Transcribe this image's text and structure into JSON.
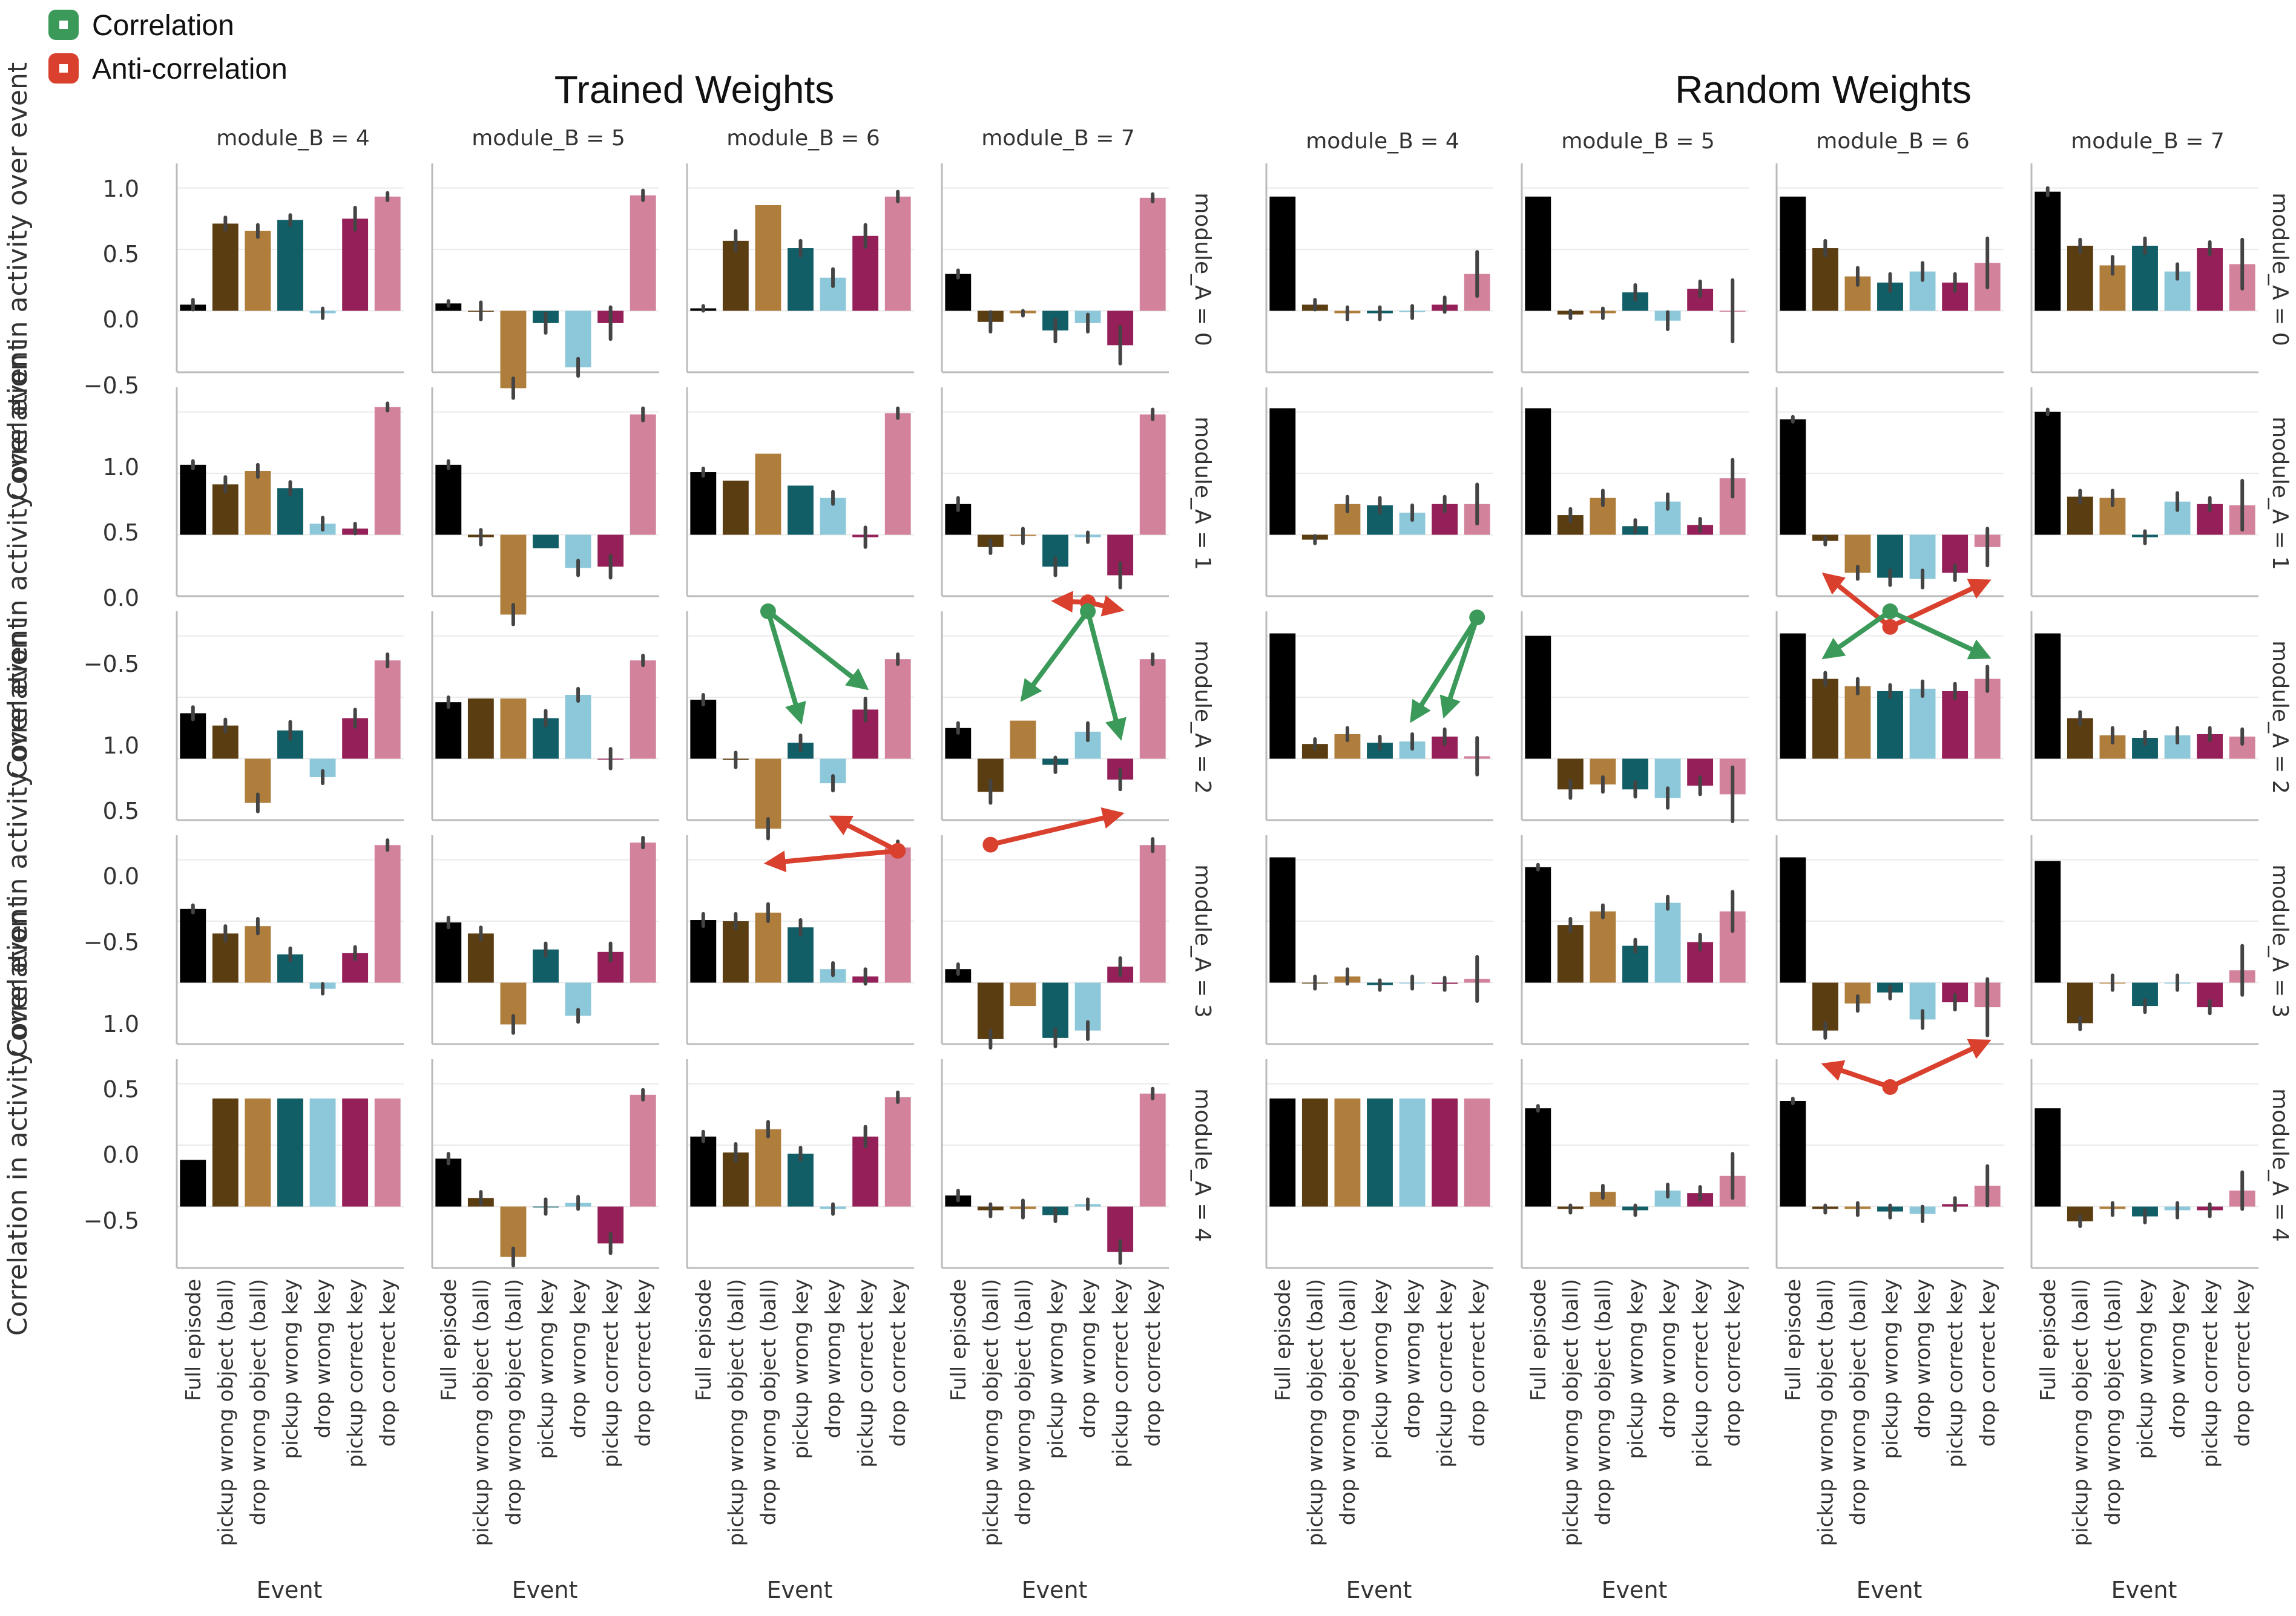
{
  "legend": {
    "correlation_label": "Correlation",
    "anticorrelation_label": "Anti-correlation",
    "correlation_color": "#3b9a5a",
    "anticorrelation_color": "#d9402e"
  },
  "colors": {
    "events": [
      "#000000",
      "#5b3d12",
      "#b07e3c",
      "#115e67",
      "#8cc8da",
      "#951f58",
      "#d3829b"
    ],
    "error_bar": "#444444",
    "grid": "#eaeaea",
    "axis": "#bbbbbb"
  },
  "chart_data": [
    {
      "type": "bar",
      "title": "Trained Weights",
      "ylabel": "Correlation in activity over event",
      "xlabel": "Event",
      "ylim": [
        -0.5,
        1.2
      ],
      "yticks": [
        -0.5,
        0.0,
        0.5,
        1.0
      ],
      "ytick_labels": [
        "−0.5",
        "0.0",
        "0.5",
        "1.0"
      ],
      "col_labels": [
        "module_B = 4",
        "module_B = 5",
        "module_B = 6",
        "module_B = 7"
      ],
      "row_labels": [
        "module_A = 0",
        "module_A = 1",
        "module_A = 2",
        "module_A = 3",
        "module_A = 4"
      ],
      "categories": [
        "Full episode",
        "pickup wrong object (ball)",
        "drop wrong object (ball)",
        "pickup wrong key",
        "drop wrong key",
        "pickup correct key",
        "drop correct key"
      ],
      "values": [
        [
          [
            0.05,
            0.71,
            0.65,
            0.74,
            -0.02,
            0.75,
            0.93
          ],
          [
            0.06,
            0.0,
            -0.63,
            -0.1,
            -0.46,
            -0.1,
            0.94
          ],
          [
            0.02,
            0.57,
            0.86,
            0.51,
            0.27,
            0.61,
            0.93
          ],
          [
            0.3,
            -0.09,
            -0.02,
            -0.16,
            -0.1,
            -0.28,
            0.92
          ]
        ],
        [
          [
            0.57,
            0.41,
            0.52,
            0.38,
            0.09,
            0.05,
            1.04
          ],
          [
            0.57,
            -0.02,
            -0.65,
            -0.11,
            -0.27,
            -0.26,
            0.98
          ],
          [
            0.51,
            0.44,
            0.66,
            0.4,
            0.3,
            -0.02,
            0.99
          ],
          [
            0.25,
            -0.1,
            -0.01,
            -0.26,
            -0.02,
            -0.33,
            0.98
          ]
        ],
        [
          [
            0.37,
            0.27,
            -0.36,
            0.23,
            -0.15,
            0.33,
            0.8
          ],
          [
            0.46,
            0.49,
            0.49,
            0.33,
            0.52,
            0.0,
            0.8
          ],
          [
            0.48,
            -0.01,
            -0.57,
            0.13,
            -0.2,
            0.4,
            0.81
          ],
          [
            0.25,
            -0.27,
            0.31,
            -0.05,
            0.22,
            -0.17,
            0.81
          ]
        ],
        [
          [
            0.6,
            0.4,
            0.46,
            0.23,
            -0.05,
            0.24,
            1.12
          ],
          [
            0.49,
            0.4,
            -0.34,
            0.27,
            -0.27,
            0.25,
            1.14
          ],
          [
            0.51,
            0.5,
            0.57,
            0.45,
            0.11,
            0.05,
            1.1
          ],
          [
            0.11,
            -0.46,
            -0.19,
            -0.45,
            -0.39,
            0.13,
            1.12
          ]
        ],
        [
          [
            0.38,
            0.88,
            0.88,
            0.88,
            0.88,
            0.88,
            0.88
          ],
          [
            0.39,
            0.07,
            -0.41,
            0.0,
            0.03,
            -0.3,
            0.91
          ],
          [
            0.57,
            0.44,
            0.63,
            0.43,
            -0.02,
            0.57,
            0.89
          ],
          [
            0.09,
            -0.03,
            -0.02,
            -0.07,
            0.02,
            -0.37,
            0.92
          ]
        ]
      ],
      "errors": [
        [
          [
            0.04,
            0.05,
            0.05,
            0.04,
            0.04,
            0.09,
            0.03
          ],
          [
            0.02,
            0.07,
            0.08,
            0.08,
            0.07,
            0.13,
            0.04
          ],
          [
            0.02,
            0.08,
            0.0,
            0.06,
            0.07,
            0.09,
            0.04
          ],
          [
            0.03,
            0.08,
            0.02,
            0.09,
            0.07,
            0.15,
            0.03
          ]
        ],
        [
          [
            0.03,
            0.06,
            0.05,
            0.05,
            0.05,
            0.04,
            0.03
          ],
          [
            0.03,
            0.06,
            0.08,
            0.0,
            0.06,
            0.09,
            0.05
          ],
          [
            0.03,
            0.0,
            0.0,
            0.0,
            0.05,
            0.08,
            0.04
          ],
          [
            0.05,
            0.05,
            0.06,
            0.07,
            0.04,
            0.1,
            0.04
          ]
        ],
        [
          [
            0.05,
            0.05,
            0.07,
            0.07,
            0.05,
            0.07,
            0.05
          ],
          [
            0.04,
            0.0,
            0.0,
            0.06,
            0.05,
            0.08,
            0.04
          ],
          [
            0.04,
            0.06,
            0.08,
            0.06,
            0.06,
            0.09,
            0.04
          ],
          [
            0.04,
            0.09,
            0.0,
            0.06,
            0.07,
            0.08,
            0.04
          ]
        ],
        [
          [
            0.03,
            0.06,
            0.06,
            0.05,
            0.04,
            0.05,
            0.04
          ],
          [
            0.04,
            0.05,
            0.07,
            0.05,
            0.05,
            0.07,
            0.04
          ],
          [
            0.05,
            0.06,
            0.07,
            0.06,
            0.05,
            0.06,
            0.05
          ],
          [
            0.04,
            0.07,
            0.0,
            0.07,
            0.07,
            0.07,
            0.05
          ]
        ],
        [
          [
            0.0,
            0.0,
            0.0,
            0.0,
            0.0,
            0.0,
            0.0
          ],
          [
            0.04,
            0.05,
            0.07,
            0.06,
            0.05,
            0.08,
            0.04
          ],
          [
            0.04,
            0.07,
            0.06,
            0.05,
            0.04,
            0.08,
            0.04
          ],
          [
            0.04,
            0.05,
            0.07,
            0.05,
            0.04,
            0.09,
            0.04
          ]
        ]
      ]
    },
    {
      "type": "bar",
      "title": "Random Weights",
      "ylabel": "",
      "xlabel": "Event",
      "ylim": [
        -0.5,
        1.2
      ],
      "col_labels": [
        "module_B = 4",
        "module_B = 5",
        "module_B = 6",
        "module_B = 7"
      ],
      "row_labels": [
        "module_A = 0",
        "module_A = 1",
        "module_A = 2",
        "module_A = 3",
        "module_A = 4"
      ],
      "categories": [
        "Full episode",
        "pickup wrong object (ball)",
        "drop wrong object (ball)",
        "pickup wrong key",
        "drop wrong key",
        "pickup correct key",
        "drop correct key"
      ],
      "values": [
        [
          [
            0.93,
            0.05,
            -0.02,
            -0.02,
            -0.01,
            0.05,
            0.3
          ],
          [
            0.93,
            -0.03,
            -0.02,
            0.15,
            -0.08,
            0.18,
            0.0
          ],
          [
            0.93,
            0.51,
            0.28,
            0.23,
            0.32,
            0.23,
            0.39
          ],
          [
            0.97,
            0.53,
            0.37,
            0.53,
            0.32,
            0.51,
            0.38
          ]
        ],
        [
          [
            1.03,
            -0.04,
            0.25,
            0.24,
            0.18,
            0.25,
            0.25
          ],
          [
            1.03,
            0.16,
            0.3,
            0.07,
            0.27,
            0.08,
            0.46
          ],
          [
            0.94,
            -0.05,
            -0.31,
            -0.35,
            -0.36,
            -0.31,
            -0.1
          ],
          [
            1.0,
            0.31,
            0.3,
            -0.02,
            0.27,
            0.25,
            0.24
          ]
        ],
        [
          [
            1.02,
            0.12,
            0.2,
            0.13,
            0.14,
            0.18,
            0.02
          ],
          [
            1.0,
            -0.25,
            -0.21,
            -0.25,
            -0.32,
            -0.22,
            -0.29
          ],
          [
            1.02,
            0.65,
            0.59,
            0.55,
            0.57,
            0.55,
            0.65
          ],
          [
            1.02,
            0.33,
            0.19,
            0.17,
            0.19,
            0.2,
            0.18
          ]
        ],
        [
          [
            1.02,
            0.0,
            0.05,
            -0.02,
            0.0,
            -0.01,
            0.03
          ],
          [
            0.94,
            0.47,
            0.58,
            0.3,
            0.65,
            0.33,
            0.58
          ],
          [
            1.02,
            -0.39,
            -0.17,
            -0.08,
            -0.3,
            -0.16,
            -0.2
          ],
          [
            0.99,
            -0.33,
            0.0,
            -0.19,
            0.0,
            -0.2,
            0.1
          ]
        ],
        [
          [
            0.88,
            0.88,
            0.88,
            0.88,
            0.88,
            0.88,
            0.88
          ],
          [
            0.8,
            -0.02,
            0.12,
            -0.03,
            0.13,
            0.11,
            0.25
          ],
          [
            0.86,
            -0.02,
            -0.02,
            -0.04,
            -0.06,
            0.02,
            0.17
          ],
          [
            0.8,
            -0.12,
            -0.02,
            -0.08,
            -0.03,
            -0.03,
            0.13
          ]
        ]
      ],
      "errors": [
        [
          [
            0.0,
            0.04,
            0.05,
            0.05,
            0.05,
            0.06,
            0.18
          ],
          [
            0.0,
            0.03,
            0.04,
            0.06,
            0.07,
            0.06,
            0.25
          ],
          [
            0.0,
            0.06,
            0.07,
            0.07,
            0.07,
            0.07,
            0.2
          ],
          [
            0.03,
            0.05,
            0.07,
            0.06,
            0.06,
            0.05,
            0.2
          ]
        ],
        [
          [
            0.0,
            0.03,
            0.06,
            0.06,
            0.06,
            0.06,
            0.16
          ],
          [
            0.0,
            0.05,
            0.06,
            0.05,
            0.06,
            0.05,
            0.15
          ],
          [
            0.02,
            0.03,
            0.05,
            0.06,
            0.07,
            0.06,
            0.15
          ],
          [
            0.02,
            0.05,
            0.06,
            0.05,
            0.07,
            0.05,
            0.2
          ]
        ],
        [
          [
            0.0,
            0.04,
            0.05,
            0.05,
            0.06,
            0.06,
            0.15
          ],
          [
            0.0,
            0.07,
            0.06,
            0.06,
            0.08,
            0.07,
            0.22
          ],
          [
            0.0,
            0.05,
            0.06,
            0.05,
            0.06,
            0.06,
            0.1
          ],
          [
            0.0,
            0.05,
            0.06,
            0.05,
            0.06,
            0.05,
            0.06
          ]
        ],
        [
          [
            0.0,
            0.05,
            0.06,
            0.04,
            0.05,
            0.05,
            0.18
          ],
          [
            0.02,
            0.05,
            0.05,
            0.05,
            0.05,
            0.06,
            0.16
          ],
          [
            0.0,
            0.06,
            0.06,
            0.05,
            0.07,
            0.06,
            0.23
          ],
          [
            0.0,
            0.05,
            0.06,
            0.05,
            0.06,
            0.05,
            0.2
          ]
        ],
        [
          [
            0.0,
            0.0,
            0.0,
            0.0,
            0.0,
            0.0,
            0.0
          ],
          [
            0.02,
            0.03,
            0.05,
            0.04,
            0.05,
            0.05,
            0.18
          ],
          [
            0.02,
            0.03,
            0.05,
            0.05,
            0.06,
            0.05,
            0.16
          ],
          [
            0.0,
            0.04,
            0.05,
            0.05,
            0.06,
            0.05,
            0.15
          ]
        ]
      ]
    }
  ],
  "annotations": [
    {
      "panel": 0,
      "row": 1,
      "col": 3,
      "type": "anti",
      "from": 4,
      "to": [
        3,
        5
      ],
      "level": -0.55
    },
    {
      "panel": 0,
      "row": 2,
      "col": 2,
      "type": "corr",
      "from": 2,
      "to": [
        3,
        5
      ],
      "level": 1.2
    },
    {
      "panel": 0,
      "row": 2,
      "col": 2,
      "type": "anti",
      "from": 6,
      "to": [
        4,
        2
      ],
      "level": -0.75
    },
    {
      "panel": 0,
      "row": 2,
      "col": 3,
      "type": "corr",
      "from": 4,
      "to": [
        2,
        5
      ],
      "level": 1.2
    },
    {
      "panel": 0,
      "row": 2,
      "col": 3,
      "type": "anti",
      "from": 1,
      "to": [
        5
      ],
      "level": -0.7
    },
    {
      "panel": 1,
      "row": 1,
      "col": 2,
      "type": "anti",
      "from": 3,
      "to": [
        1,
        6
      ],
      "level": -0.75
    },
    {
      "panel": 1,
      "row": 2,
      "col": 0,
      "type": "corr",
      "from": 6,
      "to": [
        4,
        5
      ],
      "level": 1.15
    },
    {
      "panel": 1,
      "row": 2,
      "col": 2,
      "type": "corr",
      "from": 3,
      "to": [
        1,
        6
      ],
      "level": 1.2
    },
    {
      "panel": 1,
      "row": 3,
      "col": 2,
      "type": "anti",
      "from": 3,
      "to": [
        1,
        6
      ],
      "level": -0.85
    }
  ]
}
